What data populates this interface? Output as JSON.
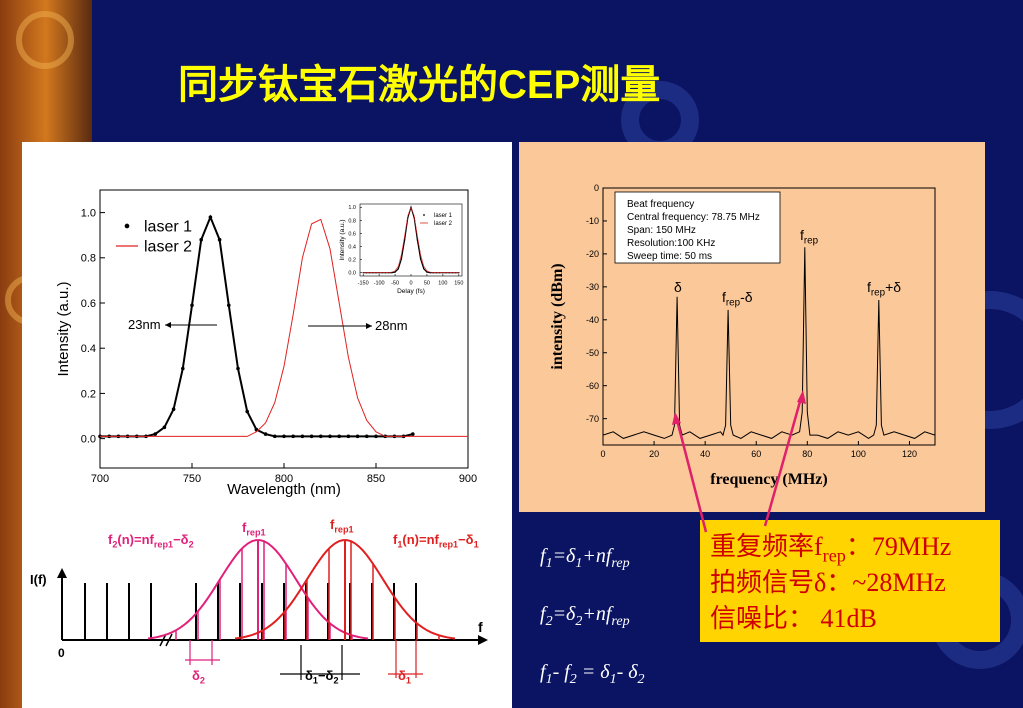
{
  "title": "同步钛宝石激光的CEP测量",
  "chart_data": [
    {
      "type": "line",
      "xlabel": "Wavelength (nm)",
      "ylabel": "Intensity (a.u.)",
      "xlim": [
        700,
        900
      ],
      "xticks": [
        700,
        750,
        800,
        850,
        900
      ],
      "ylim": [
        -0.13,
        1.1
      ],
      "yticks": [
        {
          "value": 0,
          "label": "0.0"
        },
        0.2,
        0.4,
        0.6,
        0.8,
        {
          "value": 1,
          "label": "1.0"
        }
      ],
      "legend": "upper left",
      "x": [
        700,
        705,
        710,
        715,
        720,
        725,
        730,
        735,
        740,
        745,
        750,
        755,
        760,
        765,
        770,
        775,
        780,
        785,
        790,
        795,
        800,
        805,
        810,
        815,
        820,
        825,
        830,
        835,
        840,
        845,
        850,
        855,
        860,
        865,
        870,
        875,
        880,
        885,
        890,
        895,
        900
      ],
      "series": [
        {
          "name": "laser 1",
          "color": "#000000",
          "marker": "circle",
          "values": [
            0.01,
            0.01,
            0.01,
            0.01,
            0.01,
            0.01,
            0.02,
            0.05,
            0.13,
            0.31,
            0.59,
            0.88,
            0.98,
            0.88,
            0.59,
            0.31,
            0.12,
            0.04,
            0.02,
            0.01,
            0.01,
            0.01,
            0.01,
            0.01,
            0.01,
            0.01,
            0.01,
            0.01,
            0.01,
            0.01,
            0.01,
            0.01,
            0.01,
            0.01,
            0.02,
            null,
            null,
            null,
            null,
            null,
            null
          ]
        },
        {
          "name": "laser 2",
          "color": "#e02020",
          "values": [
            0.01,
            0.01,
            0.01,
            0.01,
            0.01,
            0.01,
            0.01,
            0.01,
            0.01,
            0.01,
            0.01,
            0.01,
            0.01,
            0.01,
            0.01,
            0.01,
            0.01,
            0.03,
            0.07,
            0.16,
            0.32,
            0.55,
            0.8,
            0.95,
            0.97,
            0.84,
            0.6,
            0.36,
            0.18,
            0.08,
            0.03,
            0.01,
            0.01,
            0.01,
            0.01,
            0.01,
            0.01,
            0.01,
            0.01,
            0.01,
            0.01
          ]
        }
      ],
      "annotations": [
        "23nm",
        "28nm"
      ]
    },
    {
      "type": "line",
      "xlabel": "Delay (fs)",
      "ylabel": "Intensity (a.u.)",
      "xlim": [
        -160,
        160
      ],
      "xticks": [
        -150,
        -100,
        -50,
        0,
        50,
        100,
        150
      ],
      "ylim": [
        -0.05,
        1.05
      ],
      "yticks": [
        {
          "value": 0,
          "label": "0.0"
        },
        0.2,
        0.4,
        0.6,
        0.8,
        {
          "value": 1,
          "label": "1.0"
        }
      ],
      "legend": "upper right",
      "x": [
        -150,
        -140,
        -130,
        -120,
        -110,
        -100,
        -90,
        -80,
        -70,
        -60,
        -50,
        -40,
        -30,
        -20,
        -10,
        0,
        10,
        20,
        30,
        40,
        50,
        60,
        70,
        80,
        90,
        100,
        110,
        120,
        130,
        140,
        150
      ],
      "series": [
        {
          "name": "laser 1",
          "color": "#000000",
          "marker": "circle",
          "values": [
            0,
            0,
            0,
            0,
            0,
            0,
            0,
            0,
            0,
            0,
            0.01,
            0.06,
            0.21,
            0.5,
            0.84,
            1,
            0.84,
            0.5,
            0.21,
            0.06,
            0.01,
            0,
            0,
            0,
            0,
            0,
            0,
            0,
            0,
            0,
            0
          ]
        },
        {
          "name": "laser 2",
          "color": "#e02020",
          "values": [
            0,
            0,
            0,
            0,
            0,
            0,
            0,
            0,
            0,
            0.01,
            0.03,
            0.1,
            0.28,
            0.56,
            0.87,
            1,
            0.87,
            0.56,
            0.28,
            0.1,
            0.03,
            0.01,
            0,
            0,
            0,
            0,
            0,
            0,
            0,
            0,
            0
          ]
        }
      ]
    },
    {
      "type": "line",
      "xlabel": "frequency (MHz)",
      "ylabel": "intensity (dBm)",
      "xlim": [
        0,
        130
      ],
      "xticks": [
        0,
        20,
        40,
        60,
        80,
        100,
        120
      ],
      "ylim": [
        -78,
        0
      ],
      "yticks": [
        0,
        -10,
        -20,
        -30,
        -40,
        -50,
        -60,
        -70
      ],
      "x": [
        0,
        4,
        8,
        12,
        16,
        20,
        24,
        27,
        28,
        29,
        30,
        31,
        34,
        38,
        42,
        46,
        47,
        48,
        49,
        50,
        51,
        54,
        58,
        62,
        66,
        70,
        74,
        77,
        78,
        79,
        80,
        81,
        84,
        88,
        92,
        96,
        100,
        104,
        106,
        107,
        108,
        109,
        110,
        114,
        118,
        122,
        126,
        130
      ],
      "series": [
        {
          "color": "#000000",
          "values": [
            -75,
            -74,
            -76,
            -75,
            -74,
            -75,
            -76,
            -75,
            -72,
            -33,
            -72,
            -75,
            -74,
            -76,
            -75,
            -74,
            -75,
            -72,
            -37,
            -72,
            -75,
            -76,
            -74,
            -75,
            -76,
            -74,
            -75,
            -74,
            -68,
            -18,
            -68,
            -75,
            -75,
            -76,
            -74,
            -75,
            -74,
            -76,
            -75,
            -72,
            -34,
            -72,
            -75,
            -74,
            -75,
            -76,
            -74,
            -75
          ]
        }
      ],
      "info_box": [
        "Beat frequency",
        "Central frequency: 78.75 MHz",
        "Span: 150 MHz",
        "Resolution:100 KHz",
        "Sweep time: 50 ms"
      ],
      "peak_labels": [
        [
          {
            "text": "δ"
          }
        ],
        [
          {
            "text": "f"
          },
          {
            "text": "rep",
            "sub": true
          },
          {
            "text": "-δ"
          }
        ],
        [
          {
            "text": "f"
          },
          {
            "text": "rep",
            "sub": true
          }
        ],
        [
          {
            "text": "f"
          },
          {
            "text": "rep",
            "sub": true
          },
          {
            "text": "+δ"
          }
        ]
      ]
    }
  ],
  "diagram": {
    "axis_y": "I(f)",
    "origin": "0",
    "axis_x": "f",
    "comb2": [
      {
        "text": "f"
      },
      {
        "text": "2",
        "sub": true
      },
      {
        "text": "(n)=nf"
      },
      {
        "text": "rep1",
        "sub": true
      },
      {
        "text": "−δ"
      },
      {
        "text": "2",
        "sub": true
      }
    ],
    "comb1": [
      {
        "text": "f"
      },
      {
        "text": "1",
        "sub": true
      },
      {
        "text": "(n)=nf"
      },
      {
        "text": "rep1",
        "sub": true
      },
      {
        "text": "−δ"
      },
      {
        "text": "1",
        "sub": true
      }
    ],
    "frep2": [
      {
        "text": "f"
      },
      {
        "text": "rep1",
        "sub": true
      }
    ],
    "frep1": [
      {
        "text": "f"
      },
      {
        "text": "rep1",
        "sub": true
      }
    ],
    "delta2": [
      {
        "text": "δ"
      },
      {
        "text": "2",
        "sub": true
      }
    ],
    "delta12": [
      {
        "text": "δ"
      },
      {
        "text": "1",
        "sub": true
      },
      {
        "text": "−δ"
      },
      {
        "text": "2",
        "sub": true
      }
    ],
    "delta1": [
      {
        "text": "δ"
      },
      {
        "text": "1",
        "sub": true
      }
    ]
  },
  "equations": [
    [
      {
        "text": "f"
      },
      {
        "text": "1",
        "sub": true
      },
      {
        "text": "=δ"
      },
      {
        "text": "1",
        "sub": true
      },
      {
        "text": "+nf"
      },
      {
        "text": "rep",
        "sub": true
      }
    ],
    [
      {
        "text": "f"
      },
      {
        "text": "2",
        "sub": true
      },
      {
        "text": "=δ"
      },
      {
        "text": "2",
        "sub": true
      },
      {
        "text": "+nf"
      },
      {
        "text": "rep",
        "sub": true
      }
    ],
    [
      {
        "text": "f"
      },
      {
        "text": "1",
        "sub": true
      },
      {
        "text": "- f"
      },
      {
        "text": "2",
        "sub": true
      },
      {
        "text": " = δ"
      },
      {
        "text": "1",
        "sub": true
      },
      {
        "text": "- δ"
      },
      {
        "text": "2",
        "sub": true
      }
    ]
  ],
  "callout": [
    [
      {
        "text": "重复频率f"
      },
      {
        "text": "rep",
        "sub": true
      },
      {
        "text": "：79MHz"
      }
    ],
    [
      {
        "text": "拍频信号δ：~28MHz"
      }
    ],
    [
      {
        "text": "信噪比： 41dB"
      }
    ]
  ]
}
